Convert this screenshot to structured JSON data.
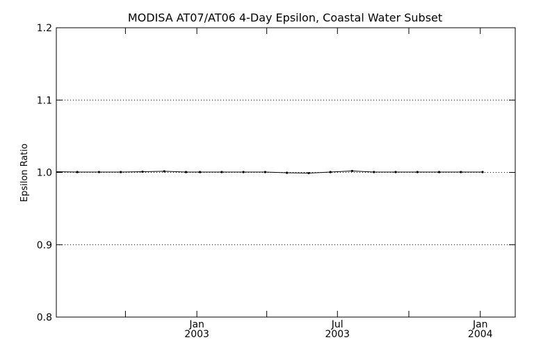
{
  "chart_data": {
    "type": "line",
    "title": "MODISA AT07/AT06 4-Day Epsilon, Coastal Water Subset",
    "xlabel": "",
    "ylabel": "Epsilon Ratio",
    "ylim": [
      0.8,
      1.2
    ],
    "yticks": [
      {
        "value": 0.8,
        "label": "0.8"
      },
      {
        "value": 0.9,
        "label": "0.9"
      },
      {
        "value": 1.0,
        "label": "1.0"
      },
      {
        "value": 1.1,
        "label": "1.1"
      },
      {
        "value": 1.2,
        "label": "1.2"
      }
    ],
    "xlim": [
      "2002-07-04",
      "2004-02-15"
    ],
    "xticks": [
      {
        "date": "2002-10-01",
        "label": "",
        "sublabel": ""
      },
      {
        "date": "2003-01-01",
        "label": "Jan",
        "sublabel": "2003"
      },
      {
        "date": "2003-04-01",
        "label": "",
        "sublabel": ""
      },
      {
        "date": "2003-07-01",
        "label": "Jul",
        "sublabel": "2003"
      },
      {
        "date": "2003-10-01",
        "label": "",
        "sublabel": ""
      },
      {
        "date": "2004-01-01",
        "label": "Jan",
        "sublabel": "2004"
      }
    ],
    "gridlines_y": [
      0.9,
      1.0,
      1.1
    ],
    "grid": "dotted horizontal",
    "line_color": "#000000",
    "series": [
      {
        "x": [
          "2002-07-04",
          "2002-07-31",
          "2002-08-28",
          "2002-09-25",
          "2002-10-23",
          "2002-11-20",
          "2002-12-18",
          "2003-01-05",
          "2003-02-02",
          "2003-03-02",
          "2003-03-30",
          "2003-04-27",
          "2003-05-25",
          "2003-06-22",
          "2003-07-20",
          "2003-08-17",
          "2003-09-14",
          "2003-10-12",
          "2003-11-09",
          "2003-12-07",
          "2004-01-04"
        ],
        "y": [
          1.001,
          1.0005,
          1.0005,
          1.0005,
          1.001,
          1.0015,
          1.0005,
          1.0005,
          1.0005,
          1.0005,
          1.0005,
          0.9995,
          0.999,
          1.0005,
          1.002,
          1.0005,
          1.0005,
          1.0005,
          1.0005,
          1.0005,
          1.0005
        ]
      }
    ]
  }
}
